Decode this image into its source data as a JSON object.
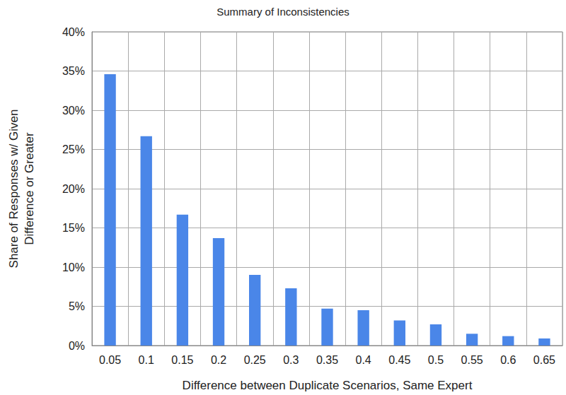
{
  "chart_data": {
    "type": "bar",
    "title": "Summary of Inconsistencies",
    "x_label": "Difference between Duplicate Scenarios, Same Expert",
    "y_label": "Share of Responses w/ Given\nDifference or Greater",
    "categories": [
      "0.05",
      "0.1",
      "0.15",
      "0.2",
      "0.25",
      "0.3",
      "0.35",
      "0.4",
      "0.45",
      "0.5",
      "0.55",
      "0.6",
      "0.65"
    ],
    "values": [
      34.6,
      26.7,
      16.7,
      13.7,
      9.0,
      7.3,
      4.7,
      4.5,
      3.2,
      2.7,
      1.5,
      1.2,
      0.9
    ],
    "color": "#4a86e8",
    "ylim": [
      0,
      40
    ],
    "yticks": [
      {
        "value": 0,
        "label": "0%"
      },
      {
        "value": 5,
        "label": "5%"
      },
      {
        "value": 10,
        "label": "10%"
      },
      {
        "value": 15,
        "label": "15%"
      },
      {
        "value": 20,
        "label": "20%"
      },
      {
        "value": 25,
        "label": "25%"
      },
      {
        "value": 30,
        "label": "30%"
      },
      {
        "value": 35,
        "label": "35%"
      },
      {
        "value": 40,
        "label": "40%"
      }
    ],
    "grid": true
  }
}
